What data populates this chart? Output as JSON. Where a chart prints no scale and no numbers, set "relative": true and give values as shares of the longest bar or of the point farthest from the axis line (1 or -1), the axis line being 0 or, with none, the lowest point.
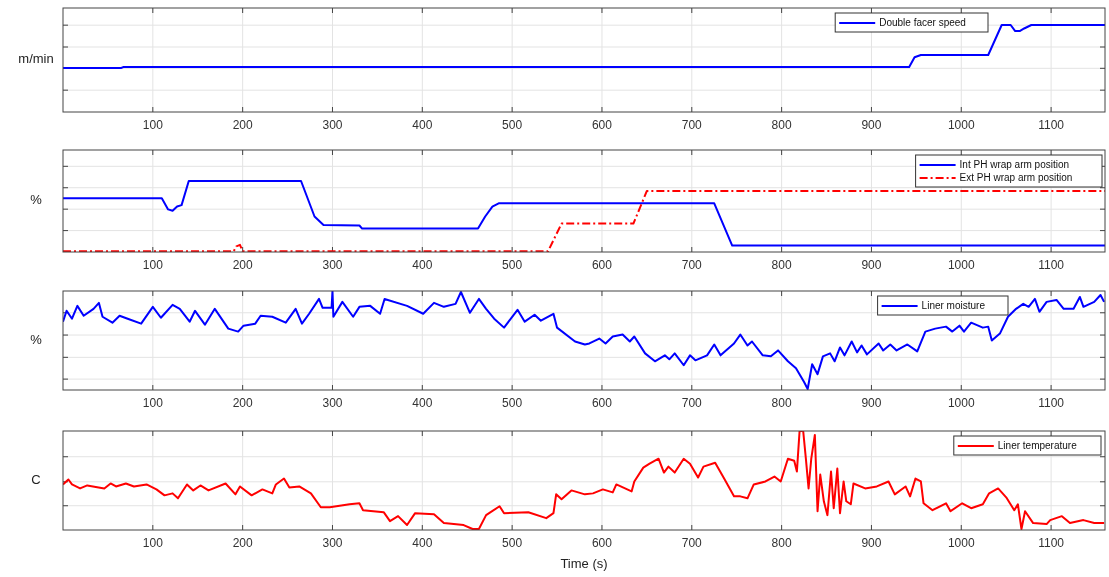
{
  "chart_data": [
    {
      "type": "line",
      "ylabel": "m/min",
      "relative": true,
      "xlim": [
        0,
        1160
      ],
      "xticks": [
        100,
        200,
        300,
        400,
        500,
        600,
        700,
        800,
        900,
        1000,
        1100
      ],
      "grid": true,
      "legend": "top right",
      "tick_labels": "x",
      "series": [
        {
          "name": "Double facer speed",
          "color": "#0000ff",
          "line_style": "solid",
          "x": [
            0,
            65,
            67,
            942,
            948,
            955,
            1030,
            1045,
            1055,
            1060,
            1065,
            1070,
            1078,
            1160
          ],
          "values": [
            0.506,
            0.506,
            0.517,
            0.517,
            0.63,
            0.655,
            0.655,
            1,
            1,
            0.93,
            0.93,
            0.96,
            1,
            1
          ]
        }
      ]
    },
    {
      "type": "line",
      "ylabel": "%",
      "relative": true,
      "xlim": [
        0,
        1160
      ],
      "xticks": [
        100,
        200,
        300,
        400,
        500,
        600,
        700,
        800,
        900,
        1000,
        1100
      ],
      "grid": true,
      "legend": "top right",
      "tick_labels": "x",
      "series": [
        {
          "name": "Int PH wrap arm position",
          "color": "#0000ff",
          "line_style": "solid",
          "x": [
            0,
            110,
            117,
            122,
            127,
            132,
            140,
            265,
            280,
            290,
            330,
            333,
            462,
            470,
            478,
            485,
            725,
            745,
            1160
          ],
          "values": [
            0.756,
            0.756,
            0.6,
            0.58,
            0.64,
            0.66,
            1,
            1,
            0.5,
            0.38,
            0.373,
            0.33,
            0.33,
            0.5,
            0.64,
            0.686,
            0.686,
            0.09,
            0.09
          ]
        },
        {
          "name": "Ext PH wrap arm position",
          "color": "#ff0000",
          "line_style": "dashed",
          "x": [
            0,
            190,
            193,
            197,
            200,
            540,
            555,
            635,
            650,
            1160
          ],
          "values": [
            0.01,
            0.01,
            0.08,
            0.1,
            0.01,
            0.01,
            0.4,
            0.4,
            0.86,
            0.86
          ]
        }
      ]
    },
    {
      "type": "line",
      "ylabel": "%",
      "relative": true,
      "xlim": [
        0,
        1160
      ],
      "xticks": [
        100,
        200,
        300,
        400,
        500,
        600,
        700,
        800,
        900,
        1000,
        1100
      ],
      "grid": true,
      "legend": "top right",
      "tick_labels": "x",
      "series": [
        {
          "name": "Liner moisture",
          "color": "#0000ff",
          "line_style": "solid",
          "x": [
            0,
            4,
            10,
            16,
            23,
            34,
            40,
            44,
            55,
            63,
            72,
            87,
            100,
            109,
            122,
            130,
            141,
            147,
            158,
            169,
            184,
            195,
            201,
            214,
            220,
            233,
            248,
            259,
            266,
            274,
            285,
            289,
            299,
            300,
            301,
            311,
            323,
            330,
            342,
            353,
            358,
            383,
            401,
            413,
            424,
            437,
            443,
            453,
            463,
            471,
            480,
            491,
            506,
            514,
            525,
            532,
            546,
            550,
            570,
            581,
            586,
            597,
            604,
            612,
            623,
            631,
            636,
            648,
            659,
            670,
            675,
            681,
            691,
            698,
            704,
            717,
            725,
            732,
            747,
            754,
            762,
            767,
            779,
            788,
            796,
            807,
            816,
            825,
            829,
            834,
            840,
            846,
            854,
            859,
            865,
            870,
            878,
            884,
            889,
            895,
            908,
            913,
            921,
            928,
            940,
            951,
            960,
            971,
            983,
            990,
            998,
            1003,
            1011,
            1024,
            1030,
            1034,
            1043,
            1052,
            1061,
            1069,
            1075,
            1082,
            1087,
            1095,
            1106,
            1114,
            1125,
            1132,
            1136,
            1148,
            1155,
            1159
          ],
          "values": [
            0.69,
            0.8,
            0.72,
            0.85,
            0.75,
            0.82,
            0.88,
            0.74,
            0.68,
            0.75,
            0.72,
            0.67,
            0.84,
            0.73,
            0.86,
            0.82,
            0.69,
            0.8,
            0.66,
            0.82,
            0.62,
            0.59,
            0.65,
            0.67,
            0.75,
            0.74,
            0.68,
            0.82,
            0.67,
            0.77,
            0.92,
            0.83,
            0.83,
            1,
            0.74,
            0.89,
            0.74,
            0.84,
            0.85,
            0.77,
            0.92,
            0.85,
            0.77,
            0.88,
            0.84,
            0.87,
            0.99,
            0.78,
            0.92,
            0.82,
            0.72,
            0.63,
            0.81,
            0.69,
            0.76,
            0.7,
            0.77,
            0.63,
            0.49,
            0.46,
            0.47,
            0.52,
            0.47,
            0.54,
            0.56,
            0.49,
            0.54,
            0.37,
            0.29,
            0.35,
            0.31,
            0.37,
            0.25,
            0.35,
            0.3,
            0.35,
            0.46,
            0.35,
            0.47,
            0.56,
            0.45,
            0.49,
            0.35,
            0.34,
            0.4,
            0.29,
            0.22,
            0.08,
            0.01,
            0.26,
            0.16,
            0.34,
            0.37,
            0.29,
            0.43,
            0.35,
            0.49,
            0.38,
            0.45,
            0.36,
            0.47,
            0.4,
            0.46,
            0.4,
            0.46,
            0.39,
            0.59,
            0.62,
            0.64,
            0.59,
            0.65,
            0.59,
            0.68,
            0.63,
            0.64,
            0.5,
            0.57,
            0.74,
            0.82,
            0.87,
            0.84,
            0.92,
            0.79,
            0.89,
            0.91,
            0.82,
            0.82,
            0.94,
            0.84,
            0.89,
            0.96,
            0.89
          ]
        }
      ]
    },
    {
      "type": "line",
      "ylabel": "C",
      "xlabel": "Time (s)",
      "relative": true,
      "xlim": [
        0,
        1160
      ],
      "xticks": [
        100,
        200,
        300,
        400,
        500,
        600,
        700,
        800,
        900,
        1000,
        1100
      ],
      "grid": true,
      "legend": "top right",
      "tick_labels": "x",
      "series": [
        {
          "name": "Liner temperature",
          "color": "#ff0000",
          "line_style": "solid",
          "x": [
            0,
            6,
            10,
            19,
            27,
            46,
            53,
            59,
            70,
            79,
            93,
            104,
            113,
            122,
            128,
            138,
            145,
            153,
            162,
            181,
            192,
            197,
            210,
            222,
            233,
            237,
            246,
            252,
            263,
            276,
            287,
            297,
            319,
            330,
            334,
            357,
            364,
            373,
            383,
            392,
            413,
            424,
            446,
            456,
            463,
            471,
            486,
            491,
            518,
            538,
            546,
            549,
            555,
            566,
            581,
            590,
            601,
            612,
            616,
            633,
            636,
            646,
            653,
            663,
            669,
            674,
            681,
            691,
            698,
            707,
            713,
            726,
            736,
            747,
            754,
            762,
            769,
            782,
            792,
            799,
            807,
            814,
            817,
            820,
            824,
            827,
            830,
            833,
            837,
            840,
            843,
            847,
            851,
            855,
            858,
            862,
            865,
            869,
            872,
            877,
            880,
            893,
            906,
            919,
            926,
            938,
            943,
            949,
            955,
            958,
            968,
            983,
            988,
            1001,
            1011,
            1024,
            1031,
            1041,
            1050,
            1059,
            1063,
            1067,
            1071,
            1080,
            1095,
            1099,
            1112,
            1121,
            1136,
            1148,
            1159
          ],
          "values": [
            0.46,
            0.51,
            0.46,
            0.42,
            0.45,
            0.42,
            0.47,
            0.44,
            0.47,
            0.44,
            0.46,
            0.41,
            0.35,
            0.37,
            0.32,
            0.46,
            0.4,
            0.45,
            0.4,
            0.47,
            0.36,
            0.44,
            0.35,
            0.41,
            0.37,
            0.46,
            0.52,
            0.43,
            0.44,
            0.37,
            0.23,
            0.23,
            0.26,
            0.27,
            0.2,
            0.18,
            0.09,
            0.14,
            0.05,
            0.17,
            0.16,
            0.07,
            0.05,
            0.01,
            0.01,
            0.15,
            0.24,
            0.17,
            0.18,
            0.12,
            0.17,
            0.36,
            0.31,
            0.4,
            0.36,
            0.37,
            0.41,
            0.38,
            0.46,
            0.39,
            0.49,
            0.63,
            0.67,
            0.72,
            0.58,
            0.64,
            0.58,
            0.72,
            0.67,
            0.53,
            0.64,
            0.68,
            0.52,
            0.34,
            0.34,
            0.32,
            0.46,
            0.49,
            0.54,
            0.49,
            0.72,
            0.7,
            0.59,
            1,
            1,
            0.72,
            0.42,
            0.72,
            0.96,
            0.19,
            0.56,
            0.29,
            0.15,
            0.59,
            0.22,
            0.62,
            0.17,
            0.49,
            0.29,
            0.26,
            0.47,
            0.42,
            0.44,
            0.49,
            0.36,
            0.44,
            0.34,
            0.52,
            0.49,
            0.27,
            0.2,
            0.27,
            0.19,
            0.27,
            0.22,
            0.26,
            0.37,
            0.42,
            0.33,
            0.2,
            0.26,
            0.01,
            0.19,
            0.07,
            0.06,
            0.1,
            0.14,
            0.07,
            0.1,
            0.07,
            0.07
          ]
        }
      ]
    }
  ]
}
